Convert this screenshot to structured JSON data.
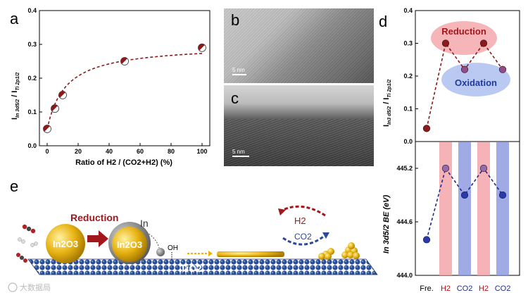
{
  "panels": {
    "a": "a",
    "b": "b",
    "c": "c",
    "d": "d",
    "e": "e"
  },
  "chart_data": [
    {
      "type": "scatter",
      "panel": "a",
      "xlabel": "Ratio of H2 / (CO2+H2) (%)",
      "ylabel_main": "I",
      "ylabel_sub1": "In 3d5/2",
      "ylabel_mid": " / I",
      "ylabel_sub2": "Ti 2p1/2",
      "x": [
        0,
        5,
        10,
        50,
        100
      ],
      "y": [
        0.05,
        0.11,
        0.15,
        0.25,
        0.29
      ],
      "xlim": [
        -5,
        105
      ],
      "ylim": [
        0.0,
        0.4
      ],
      "xticks": [
        "0",
        "20",
        "40",
        "60",
        "80",
        "100"
      ],
      "yticks": [
        "0.0",
        "0.1",
        "0.2",
        "0.3",
        "0.4"
      ],
      "marker_color": "#8b1a1a",
      "line_color": "#8b1a1a"
    },
    {
      "type": "line",
      "panel": "d-top",
      "categories": [
        "Fre.",
        "H2",
        "CO2",
        "H2",
        "CO2"
      ],
      "values": [
        0.04,
        0.3,
        0.22,
        0.3,
        0.22
      ],
      "ylim": [
        0.0,
        0.4
      ],
      "yticks": [
        "0.0",
        "0.1",
        "0.2",
        "0.3",
        "0.4"
      ],
      "ylabel_main": "I",
      "ylabel_sub1": "In3 d5/2",
      "ylabel_mid": " / I",
      "ylabel_sub2": "Ti 2p1/2",
      "annotations": [
        "Reduction",
        "Oxidation"
      ],
      "line_color": "#8b1a1a"
    },
    {
      "type": "line",
      "panel": "d-bottom",
      "categories": [
        "Fre.",
        "H2",
        "CO2",
        "H2",
        "CO2"
      ],
      "values": [
        444.4,
        445.2,
        444.9,
        445.2,
        444.9
      ],
      "ylim": [
        444.0,
        445.5
      ],
      "yticks": [
        "444.0",
        "444.6",
        "445.2"
      ],
      "ylabel": "In 3d5/2 BE (eV)",
      "xticklabels": [
        "Fre.",
        "H2",
        "CO2",
        "H2",
        "CO2"
      ],
      "band_colors": [
        "#f4a6aa",
        "#8f9be0",
        "#f4a6aa",
        "#8f9be0"
      ],
      "line_color": "#1e2a8c"
    }
  ],
  "tem": {
    "b_scale": "5 nm",
    "c_scale": "5 nm"
  },
  "schematic": {
    "reduction": "Reduction",
    "in_label": "In",
    "particle1": "In2O3",
    "particle2": "In2O3",
    "oh": "OH",
    "support": "TiO2",
    "h2": "H2",
    "co2": "CO2"
  },
  "watermark": "大数据局"
}
